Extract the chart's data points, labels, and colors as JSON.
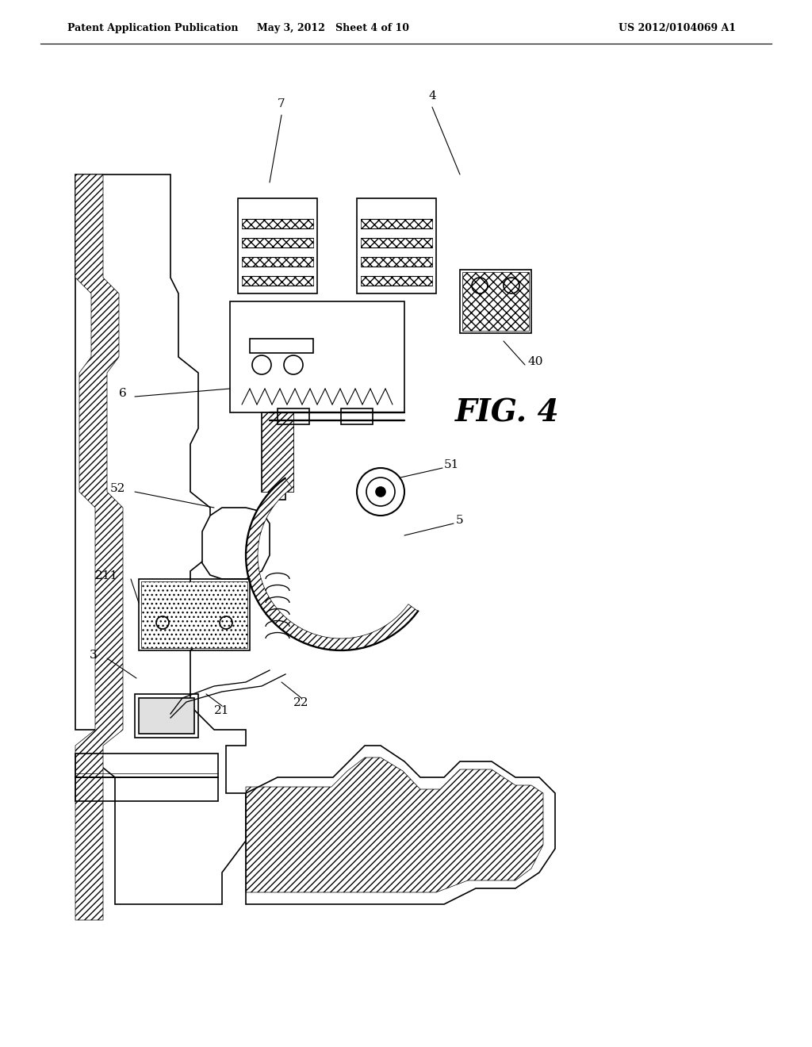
{
  "background_color": "#ffffff",
  "header_left": "Patent Application Publication",
  "header_center": "May 3, 2012   Sheet 4 of 10",
  "header_right": "US 2012/0104069 A1",
  "fig_label": "FIG. 4",
  "reference_numbers": [
    "3",
    "4",
    "5",
    "6",
    "7",
    "21",
    "22",
    "40",
    "51",
    "52",
    "211"
  ],
  "line_color": "#000000",
  "line_width": 1.2,
  "hatch_color": "#000000"
}
